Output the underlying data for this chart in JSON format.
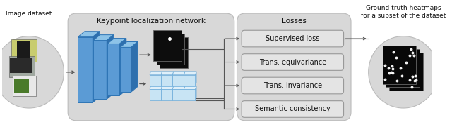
{
  "fig_width": 6.4,
  "fig_height": 1.81,
  "dpi": 100,
  "bg_color": "#ffffff",
  "title_label1": "Keypoint localization network",
  "title_label2": "Losses",
  "title_label3": "Ground truth heatmaps\nfor a subset of the dataset",
  "label_image_dataset": "Image dataset",
  "loss_boxes": [
    "Supervised loss",
    "Trans. equivariance",
    "Trans. invariance",
    "Semantic consistency"
  ],
  "panel1_bg": "#d8d8d8",
  "panel2_bg": "#d8d8d8",
  "loss_box_bg": "#e4e4e4",
  "arrow_color": "#555555",
  "cnn_color_face": "#5b9bd5",
  "cnn_color_top": "#8dc3e8",
  "cnn_color_side": "#2e6fad",
  "cnn_color_edge": "#2e75b6"
}
